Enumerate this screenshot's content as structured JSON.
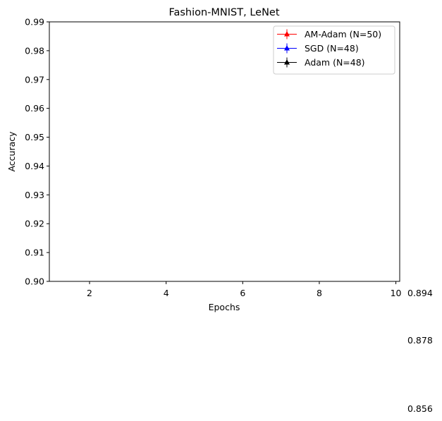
{
  "chart_data": {
    "type": "line",
    "title": "Fashion-MNIST, LeNet",
    "xlabel": "Epochs",
    "ylabel": "Accuracy",
    "xlim": [
      0.95,
      10.1
    ],
    "ylim": [
      0.9,
      0.99
    ],
    "x_ticks": [
      2,
      4,
      6,
      8,
      10
    ],
    "y_ticks": [
      "0.90",
      "0.91",
      "0.92",
      "0.93",
      "0.94",
      "0.95",
      "0.96",
      "0.97",
      "0.98",
      "0.99"
    ],
    "grid": false,
    "legend_position": "top-right",
    "series": [
      {
        "name": "AM-Adam (N=50)",
        "color": "#ff0000",
        "marker": "triangle-up",
        "x": [],
        "y": []
      },
      {
        "name": "SGD (N=48)",
        "color": "#0000ff",
        "marker": "triangle-up",
        "x": [],
        "y": []
      },
      {
        "name": "Adam (N=48)",
        "color": "#000000",
        "marker": "triangle-up",
        "x": [],
        "y": []
      }
    ],
    "extra_labels": [
      "0.894",
      "0.878",
      "0.856"
    ]
  }
}
